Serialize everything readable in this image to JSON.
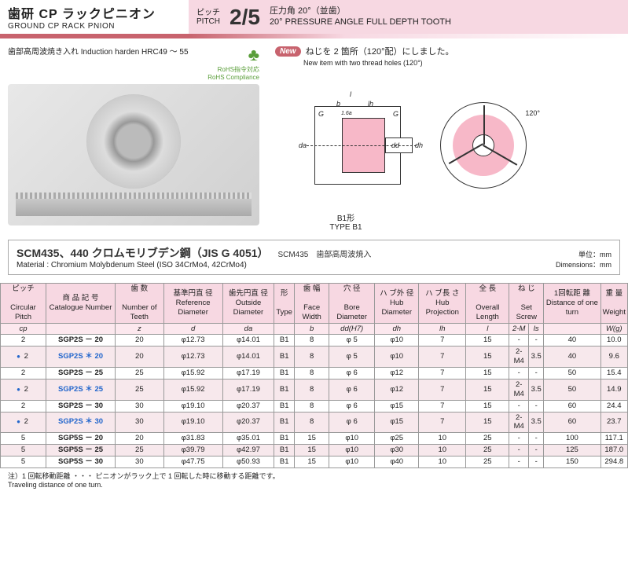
{
  "header": {
    "title_jp": "歯研 CP ラックピニオン",
    "title_en": "GROUND CP RACK PNION",
    "pitch_label_jp": "ピッチ",
    "pitch_label_en": "PITCH",
    "pitch_value": "2/5",
    "pitch_spec_jp": "圧力角 20°（並歯）",
    "pitch_spec_en": "20° PRESSURE ANGLE  FULL DEPTH TOOTH",
    "header_bg": "#f7d8e2",
    "gradient_from": "#c8636e"
  },
  "induction": "歯部高周波焼き入れ Induction harden HRC49 ～ 55",
  "rohs": {
    "jp": "RoHS指令対応",
    "en": "RoHS Compliance"
  },
  "new_item": {
    "badge": "New",
    "jp": "ねじを 2 箇所（120°配）にしました。",
    "en": "New item with two thread holes (120°)"
  },
  "diagram": {
    "type_label_jp": "B1形",
    "type_label_en": "TYPE B1",
    "angle_label": "120°",
    "dims": {
      "l": "l",
      "b": "b",
      "lh": "lh",
      "da": "da",
      "dd": "dd",
      "dh": "dh",
      "G": "G",
      "tol": "1.6a"
    }
  },
  "material": {
    "title_jp": "SCM435、440 クロムモリブデン鋼（JIS G 4051）",
    "sub_jp": "SCM435　歯部高周波焼入",
    "title_en": "Material : Chromium Molybdenum Steel (ISO 34CrMo4, 42CrMo4)",
    "unit_jp": "単位：mm",
    "unit_en": "Dimensions：mm"
  },
  "table": {
    "headers": {
      "pitch_jp": "ピッチ",
      "pitch_en": "Circular Pitch",
      "pitch_sym": "cp",
      "cat_jp": "商 品 記 号",
      "cat_en": "Catalogue Number",
      "teeth_jp": "歯 数",
      "teeth_en": "Number of Teeth",
      "teeth_sym": "z",
      "refd_jp": "基準円直 径",
      "refd_en": "Reference Diameter",
      "refd_sym": "d",
      "outd_jp": "歯先円直 径",
      "outd_en": "Outside Diameter",
      "outd_sym": "da",
      "type_jp": "形",
      "type_en": "Type",
      "face_jp": "歯 幅",
      "face_en": "Face Width",
      "face_sym": "b",
      "bore_jp": "穴 径",
      "bore_en": "Bore Diameter",
      "bore_sym": "dd(H7)",
      "hubd_jp": "ハ ブ外 径",
      "hubd_en": "Hub Diameter",
      "hubd_sym": "dh",
      "hubl_jp": "ハ ブ長 さ",
      "hubl_en": "Hub Projection",
      "hubl_sym": "lh",
      "len_jp": "全 長",
      "len_en": "Overall Length",
      "len_sym": "l",
      "screw_jp": "ね じ",
      "screw_en": "Set Screw",
      "screw_m": "2-M",
      "screw_ls": "ls",
      "dist_jp": "1回転距 離",
      "dist_en": "Distance of one turn",
      "wt_jp": "重 量",
      "wt_en": "Weight",
      "wt_sym": "W(g)"
    },
    "rows": [
      {
        "mark": "",
        "pitch": "2",
        "cat": "SGP2S － 20",
        "blue": false,
        "z": "20",
        "d": "φ12.73",
        "da": "φ14.01",
        "type": "B1",
        "b": "8",
        "bore": "φ 5",
        "hub": "φ10",
        "lh": "7",
        "l": "15",
        "m": "-",
        "ls": "-",
        "dist": "40",
        "wt": "10.0"
      },
      {
        "mark": "●",
        "pitch": "2",
        "cat": "SGP2S ＊ 20",
        "blue": true,
        "z": "20",
        "d": "φ12.73",
        "da": "φ14.01",
        "type": "B1",
        "b": "8",
        "bore": "φ 5",
        "hub": "φ10",
        "lh": "7",
        "l": "15",
        "m": "2-M4",
        "ls": "3.5",
        "dist": "40",
        "wt": "9.6"
      },
      {
        "mark": "",
        "pitch": "2",
        "cat": "SGP2S － 25",
        "blue": false,
        "z": "25",
        "d": "φ15.92",
        "da": "φ17.19",
        "type": "B1",
        "b": "8",
        "bore": "φ 6",
        "hub": "φ12",
        "lh": "7",
        "l": "15",
        "m": "-",
        "ls": "-",
        "dist": "50",
        "wt": "15.4"
      },
      {
        "mark": "●",
        "pitch": "2",
        "cat": "SGP2S ＊ 25",
        "blue": true,
        "z": "25",
        "d": "φ15.92",
        "da": "φ17.19",
        "type": "B1",
        "b": "8",
        "bore": "φ 6",
        "hub": "φ12",
        "lh": "7",
        "l": "15",
        "m": "2-M4",
        "ls": "3.5",
        "dist": "50",
        "wt": "14.9"
      },
      {
        "mark": "",
        "pitch": "2",
        "cat": "SGP2S － 30",
        "blue": false,
        "z": "30",
        "d": "φ19.10",
        "da": "φ20.37",
        "type": "B1",
        "b": "8",
        "bore": "φ 6",
        "hub": "φ15",
        "lh": "7",
        "l": "15",
        "m": "-",
        "ls": "-",
        "dist": "60",
        "wt": "24.4"
      },
      {
        "mark": "●",
        "pitch": "2",
        "cat": "SGP2S ＊ 30",
        "blue": true,
        "z": "30",
        "d": "φ19.10",
        "da": "φ20.37",
        "type": "B1",
        "b": "8",
        "bore": "φ 6",
        "hub": "φ15",
        "lh": "7",
        "l": "15",
        "m": "2-M4",
        "ls": "3.5",
        "dist": "60",
        "wt": "23.7"
      },
      {
        "mark": "",
        "pitch": "5",
        "cat": "SGP5S － 20",
        "blue": false,
        "z": "20",
        "d": "φ31.83",
        "da": "φ35.01",
        "type": "B1",
        "b": "15",
        "bore": "φ10",
        "hub": "φ25",
        "lh": "10",
        "l": "25",
        "m": "-",
        "ls": "-",
        "dist": "100",
        "wt": "117.1"
      },
      {
        "mark": "",
        "pitch": "5",
        "cat": "SGP5S － 25",
        "blue": false,
        "z": "25",
        "d": "φ39.79",
        "da": "φ42.97",
        "type": "B1",
        "b": "15",
        "bore": "φ10",
        "hub": "φ30",
        "lh": "10",
        "l": "25",
        "m": "-",
        "ls": "-",
        "dist": "125",
        "wt": "187.0"
      },
      {
        "mark": "",
        "pitch": "5",
        "cat": "SGP5S － 30",
        "blue": false,
        "z": "30",
        "d": "φ47.75",
        "da": "φ50.93",
        "type": "B1",
        "b": "15",
        "bore": "φ10",
        "hub": "φ40",
        "lh": "10",
        "l": "25",
        "m": "-",
        "ls": "-",
        "dist": "150",
        "wt": "294.8"
      }
    ]
  },
  "footnote": {
    "jp": "注）1 回転移動距離 ・・・ ピニオンがラック上で 1 回転した時に移動する距離です。",
    "en": "Traveling distance of one turn."
  }
}
